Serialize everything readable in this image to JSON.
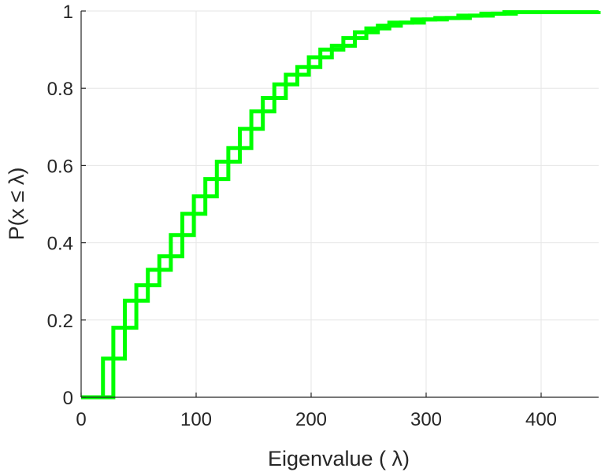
{
  "chart_data": {
    "type": "line",
    "style": "stairs",
    "xlabel": "Eigenvalue (  λ)",
    "ylabel": "P(x ≤ λ)",
    "xlim": [
      0,
      450
    ],
    "ylim": [
      0,
      1
    ],
    "xticks": [
      0,
      100,
      200,
      300,
      400
    ],
    "yticks": [
      0,
      0.2,
      0.4,
      0.6,
      0.8,
      1
    ],
    "xtick_labels": [
      "0",
      "100",
      "200",
      "300",
      "400"
    ],
    "ytick_labels": [
      "0",
      "0.2",
      "0.4",
      "0.6",
      "0.8",
      "1"
    ],
    "grid": true,
    "color": "#00ff00",
    "series": [
      {
        "x": [
          8,
          19,
          28,
          38,
          48,
          58,
          68,
          78,
          88,
          98,
          108,
          118,
          128,
          138,
          148,
          158,
          168,
          178,
          188,
          198,
          208,
          218,
          228,
          238,
          248,
          258,
          268,
          288,
          308,
          328,
          348,
          368,
          450
        ],
        "y": [
          0.0,
          0.1,
          0.18,
          0.25,
          0.29,
          0.33,
          0.365,
          0.42,
          0.475,
          0.52,
          0.565,
          0.61,
          0.645,
          0.695,
          0.74,
          0.775,
          0.81,
          0.835,
          0.855,
          0.88,
          0.9,
          0.91,
          0.93,
          0.945,
          0.955,
          0.962,
          0.97,
          0.978,
          0.982,
          0.988,
          0.993,
          0.997,
          1.0
        ]
      },
      {
        "x": [
          18,
          28,
          38,
          48,
          58,
          68,
          78,
          88,
          98,
          108,
          118,
          128,
          138,
          148,
          158,
          168,
          178,
          188,
          198,
          208,
          218,
          228,
          238,
          248,
          258,
          268,
          278,
          298,
          318,
          338,
          358,
          378,
          450
        ],
        "y": [
          0.0,
          0.1,
          0.18,
          0.25,
          0.29,
          0.33,
          0.365,
          0.42,
          0.475,
          0.52,
          0.565,
          0.61,
          0.645,
          0.695,
          0.74,
          0.775,
          0.81,
          0.835,
          0.855,
          0.88,
          0.9,
          0.91,
          0.93,
          0.945,
          0.955,
          0.962,
          0.97,
          0.978,
          0.982,
          0.988,
          0.993,
          0.997,
          1.0
        ]
      }
    ]
  }
}
